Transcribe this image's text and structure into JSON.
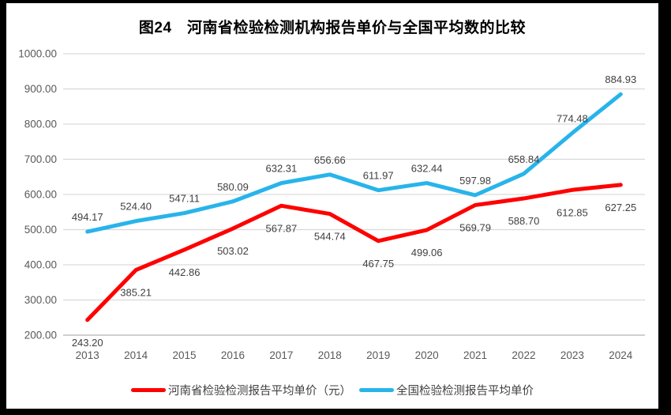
{
  "chart_data": {
    "type": "line",
    "title": "图24　河南省检验检测机构报告单价与全国平均数的比较",
    "categories": [
      "2013",
      "2014",
      "2015",
      "2016",
      "2017",
      "2018",
      "2019",
      "2020",
      "2021",
      "2022",
      "2023",
      "2024"
    ],
    "series": [
      {
        "name": "河南省检验检测报告平均单价（元）",
        "color": "#FF0000",
        "label_position": "below",
        "values": [
          243.2,
          385.21,
          442.86,
          503.02,
          567.87,
          544.74,
          467.75,
          499.06,
          569.79,
          588.7,
          612.85,
          627.25
        ]
      },
      {
        "name": "全国检验检测报告平均单价",
        "color": "#28B4EB",
        "label_position": "above",
        "values": [
          494.17,
          524.4,
          547.11,
          580.09,
          632.31,
          656.66,
          611.97,
          632.44,
          597.98,
          658.84,
          774.48,
          884.93
        ]
      }
    ],
    "ylim": [
      200,
      1000
    ],
    "ytick_step": 100,
    "ytick_decimals": 2,
    "grid": true,
    "legend_position": "bottom",
    "colors": {
      "grid": "#D9D9D9",
      "axis": "#BFBFBF",
      "tick_label": "#595959",
      "data_label": "#404040",
      "title": "#000000",
      "background": "#FFFFFF",
      "frame": "#000000"
    }
  }
}
